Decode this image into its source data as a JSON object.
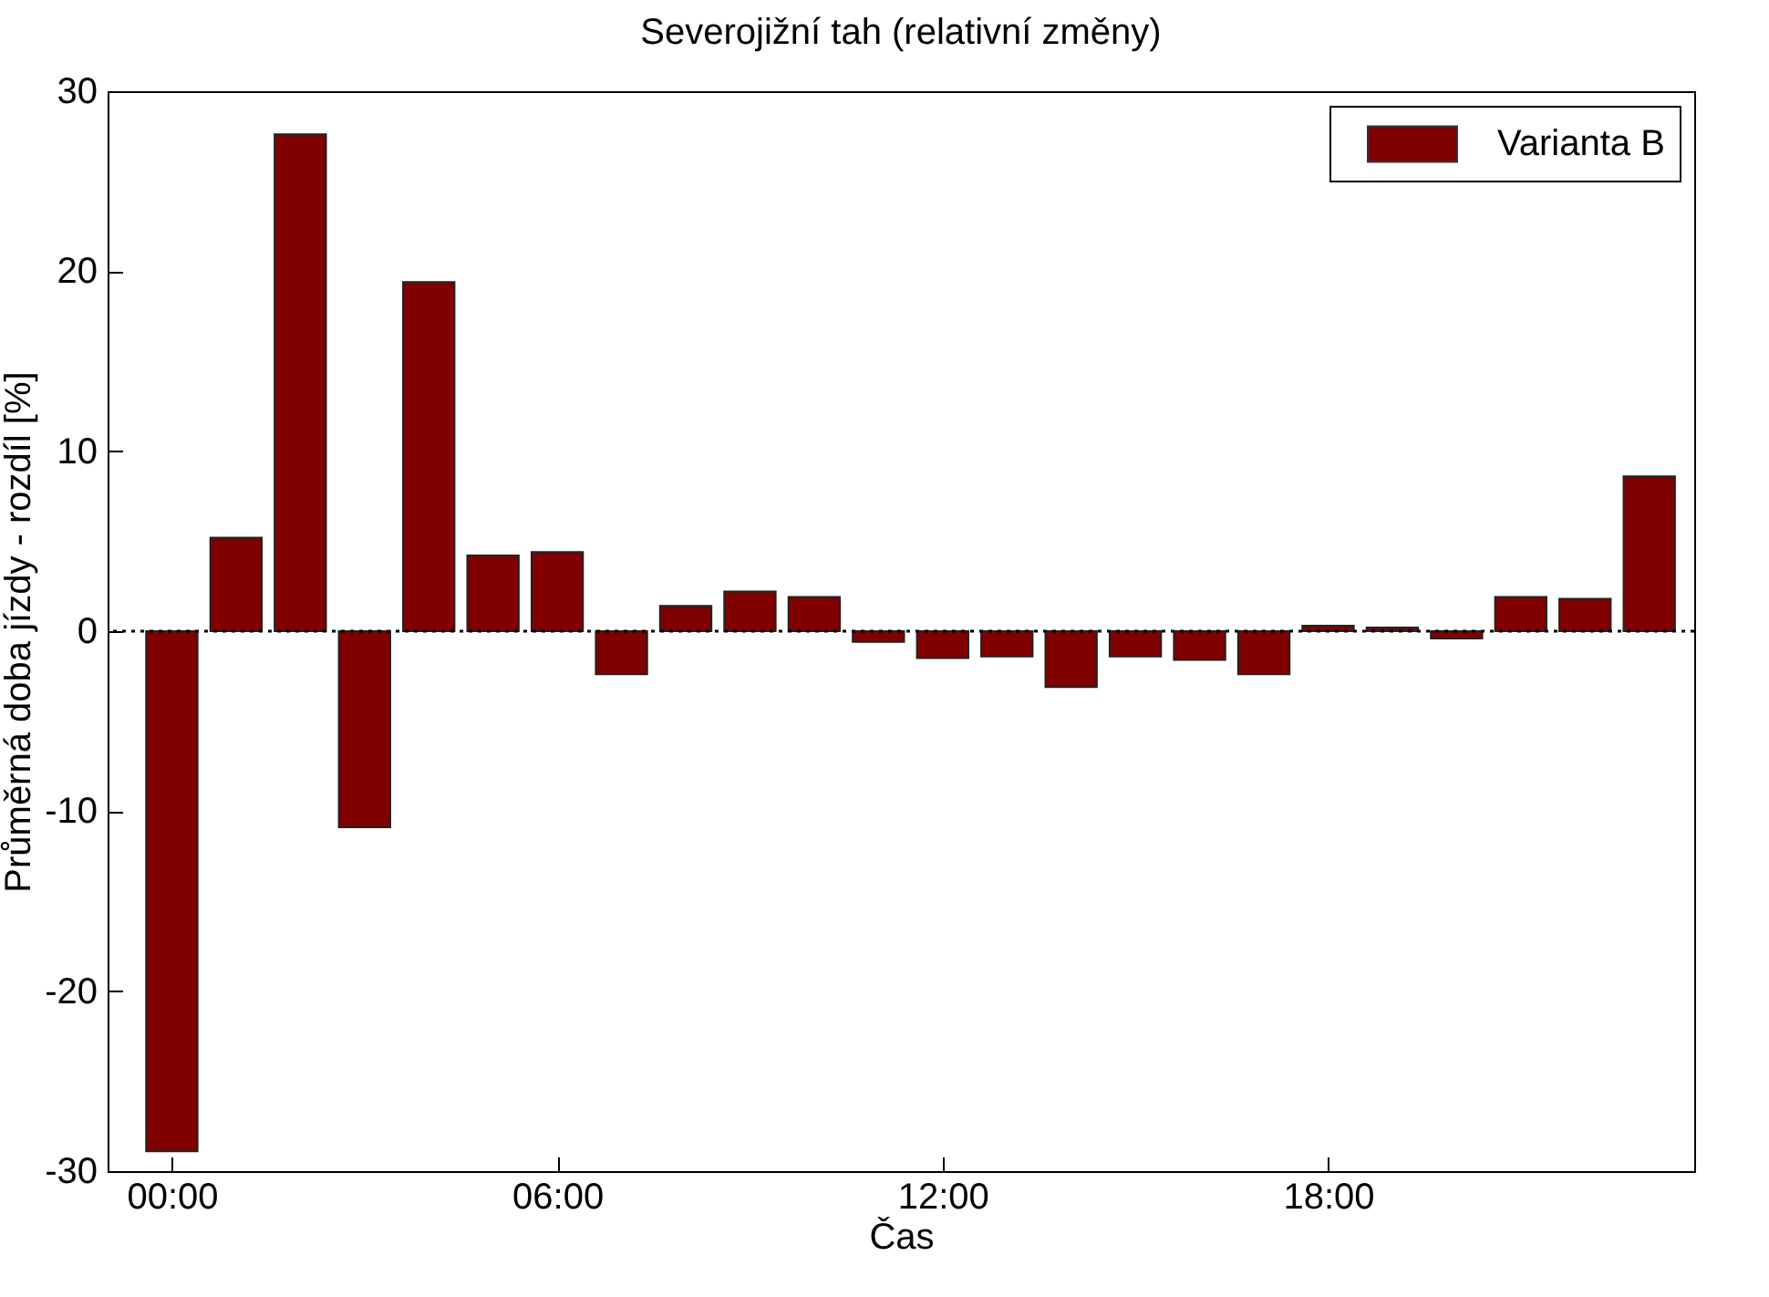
{
  "chart_data": {
    "type": "bar",
    "title": "Severojižní tah (relativní změny)",
    "xlabel": "Čas",
    "ylabel": "Průměrná doba jízdy  - rozdíl [%]",
    "x": [
      0,
      1,
      2,
      3,
      4,
      5,
      6,
      7,
      8,
      9,
      10,
      11,
      12,
      13,
      14,
      15,
      16,
      17,
      18,
      19,
      20,
      21,
      22,
      23
    ],
    "series": [
      {
        "name": "Varianta B",
        "color": "#800000",
        "values": [
          -28.9,
          5.2,
          27.6,
          -10.9,
          19.4,
          4.2,
          4.4,
          -2.4,
          1.4,
          2.2,
          1.9,
          -0.6,
          -1.5,
          -1.4,
          -3.1,
          -1.4,
          -1.6,
          -2.4,
          0.3,
          0.2,
          -0.4,
          1.9,
          1.8,
          8.6
        ]
      }
    ],
    "xlim": [
      -1,
      23.7
    ],
    "xticks": [
      {
        "value": 0,
        "label": "00:00"
      },
      {
        "value": 6,
        "label": "06:00"
      },
      {
        "value": 12,
        "label": "12:00"
      },
      {
        "value": 18,
        "label": "18:00"
      }
    ],
    "ylim": [
      -30,
      30
    ],
    "yticks": [
      -30,
      -20,
      -10,
      0,
      10,
      20,
      30
    ],
    "ref_lines": [
      {
        "axis": "y",
        "value": 0,
        "color": "#000000",
        "line_style": "dotted"
      }
    ],
    "legend": "top right"
  }
}
